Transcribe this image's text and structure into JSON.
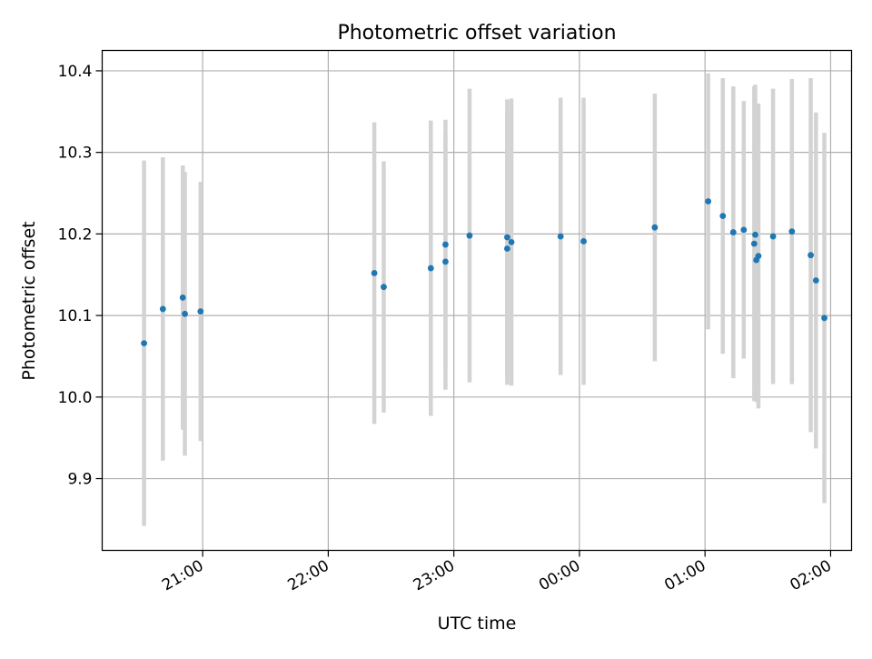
{
  "chart_data": {
    "type": "scatter",
    "title": "Photometric offset variation",
    "xlabel": "UTC time",
    "ylabel": "Photometric offset",
    "grid": true,
    "x_axis_kind": "time",
    "xlim": [
      "20:12",
      "02:10"
    ],
    "ylim": [
      9.812,
      10.425
    ],
    "x_ticks": [
      "21:00",
      "22:00",
      "23:00",
      "00:00",
      "01:00",
      "02:00"
    ],
    "y_ticks": [
      9.9,
      10.0,
      10.1,
      10.2,
      10.3,
      10.4
    ],
    "colors": {
      "marker": "#1f77b4",
      "errorbar": "#d3d3d3",
      "grid": "#b0b0b0"
    },
    "series": [
      {
        "points": [
          {
            "x": "20:32:00",
            "y": 10.066,
            "err": 0.224
          },
          {
            "x": "20:41:00",
            "y": 10.108,
            "err": 0.186
          },
          {
            "x": "20:50:30",
            "y": 10.122,
            "err": 0.162
          },
          {
            "x": "20:51:30",
            "y": 10.102,
            "err": 0.174
          },
          {
            "x": "20:59:00",
            "y": 10.105,
            "err": 0.159
          },
          {
            "x": "22:22:00",
            "y": 10.152,
            "err": 0.185
          },
          {
            "x": "22:26:30",
            "y": 10.135,
            "err": 0.154
          },
          {
            "x": "22:49:00",
            "y": 10.158,
            "err": 0.181
          },
          {
            "x": "22:56:00",
            "y": 10.166,
            "err": 0.157
          },
          {
            "x": "22:56:00",
            "y": 10.187,
            "err": 0.153
          },
          {
            "x": "23:07:30",
            "y": 10.198,
            "err": 0.18
          },
          {
            "x": "23:25:30",
            "y": 10.182,
            "err": 0.167
          },
          {
            "x": "23:25:30",
            "y": 10.196,
            "err": 0.169
          },
          {
            "x": "23:27:30",
            "y": 10.19,
            "err": 0.176
          },
          {
            "x": "23:51:00",
            "y": 10.197,
            "err": 0.17
          },
          {
            "x": "00:02:00",
            "y": 10.191,
            "err": 0.176
          },
          {
            "x": "00:36:00",
            "y": 10.208,
            "err": 0.164
          },
          {
            "x": "01:01:30",
            "y": 10.24,
            "err": 0.157
          },
          {
            "x": "01:08:30",
            "y": 10.222,
            "err": 0.169
          },
          {
            "x": "01:13:30",
            "y": 10.202,
            "err": 0.179
          },
          {
            "x": "01:18:30",
            "y": 10.205,
            "err": 0.158
          },
          {
            "x": "01:23:30",
            "y": 10.188,
            "err": 0.193
          },
          {
            "x": "01:24:00",
            "y": 10.199,
            "err": 0.184
          },
          {
            "x": "01:24:30",
            "y": 10.168,
            "err": 0.174
          },
          {
            "x": "01:25:30",
            "y": 10.173,
            "err": 0.187
          },
          {
            "x": "01:32:30",
            "y": 10.197,
            "err": 0.181
          },
          {
            "x": "01:41:30",
            "y": 10.203,
            "err": 0.187
          },
          {
            "x": "01:50:30",
            "y": 10.174,
            "err": 0.217
          },
          {
            "x": "01:53:00",
            "y": 10.143,
            "err": 0.206
          },
          {
            "x": "01:57:00",
            "y": 10.097,
            "err": 0.227
          }
        ]
      }
    ]
  }
}
